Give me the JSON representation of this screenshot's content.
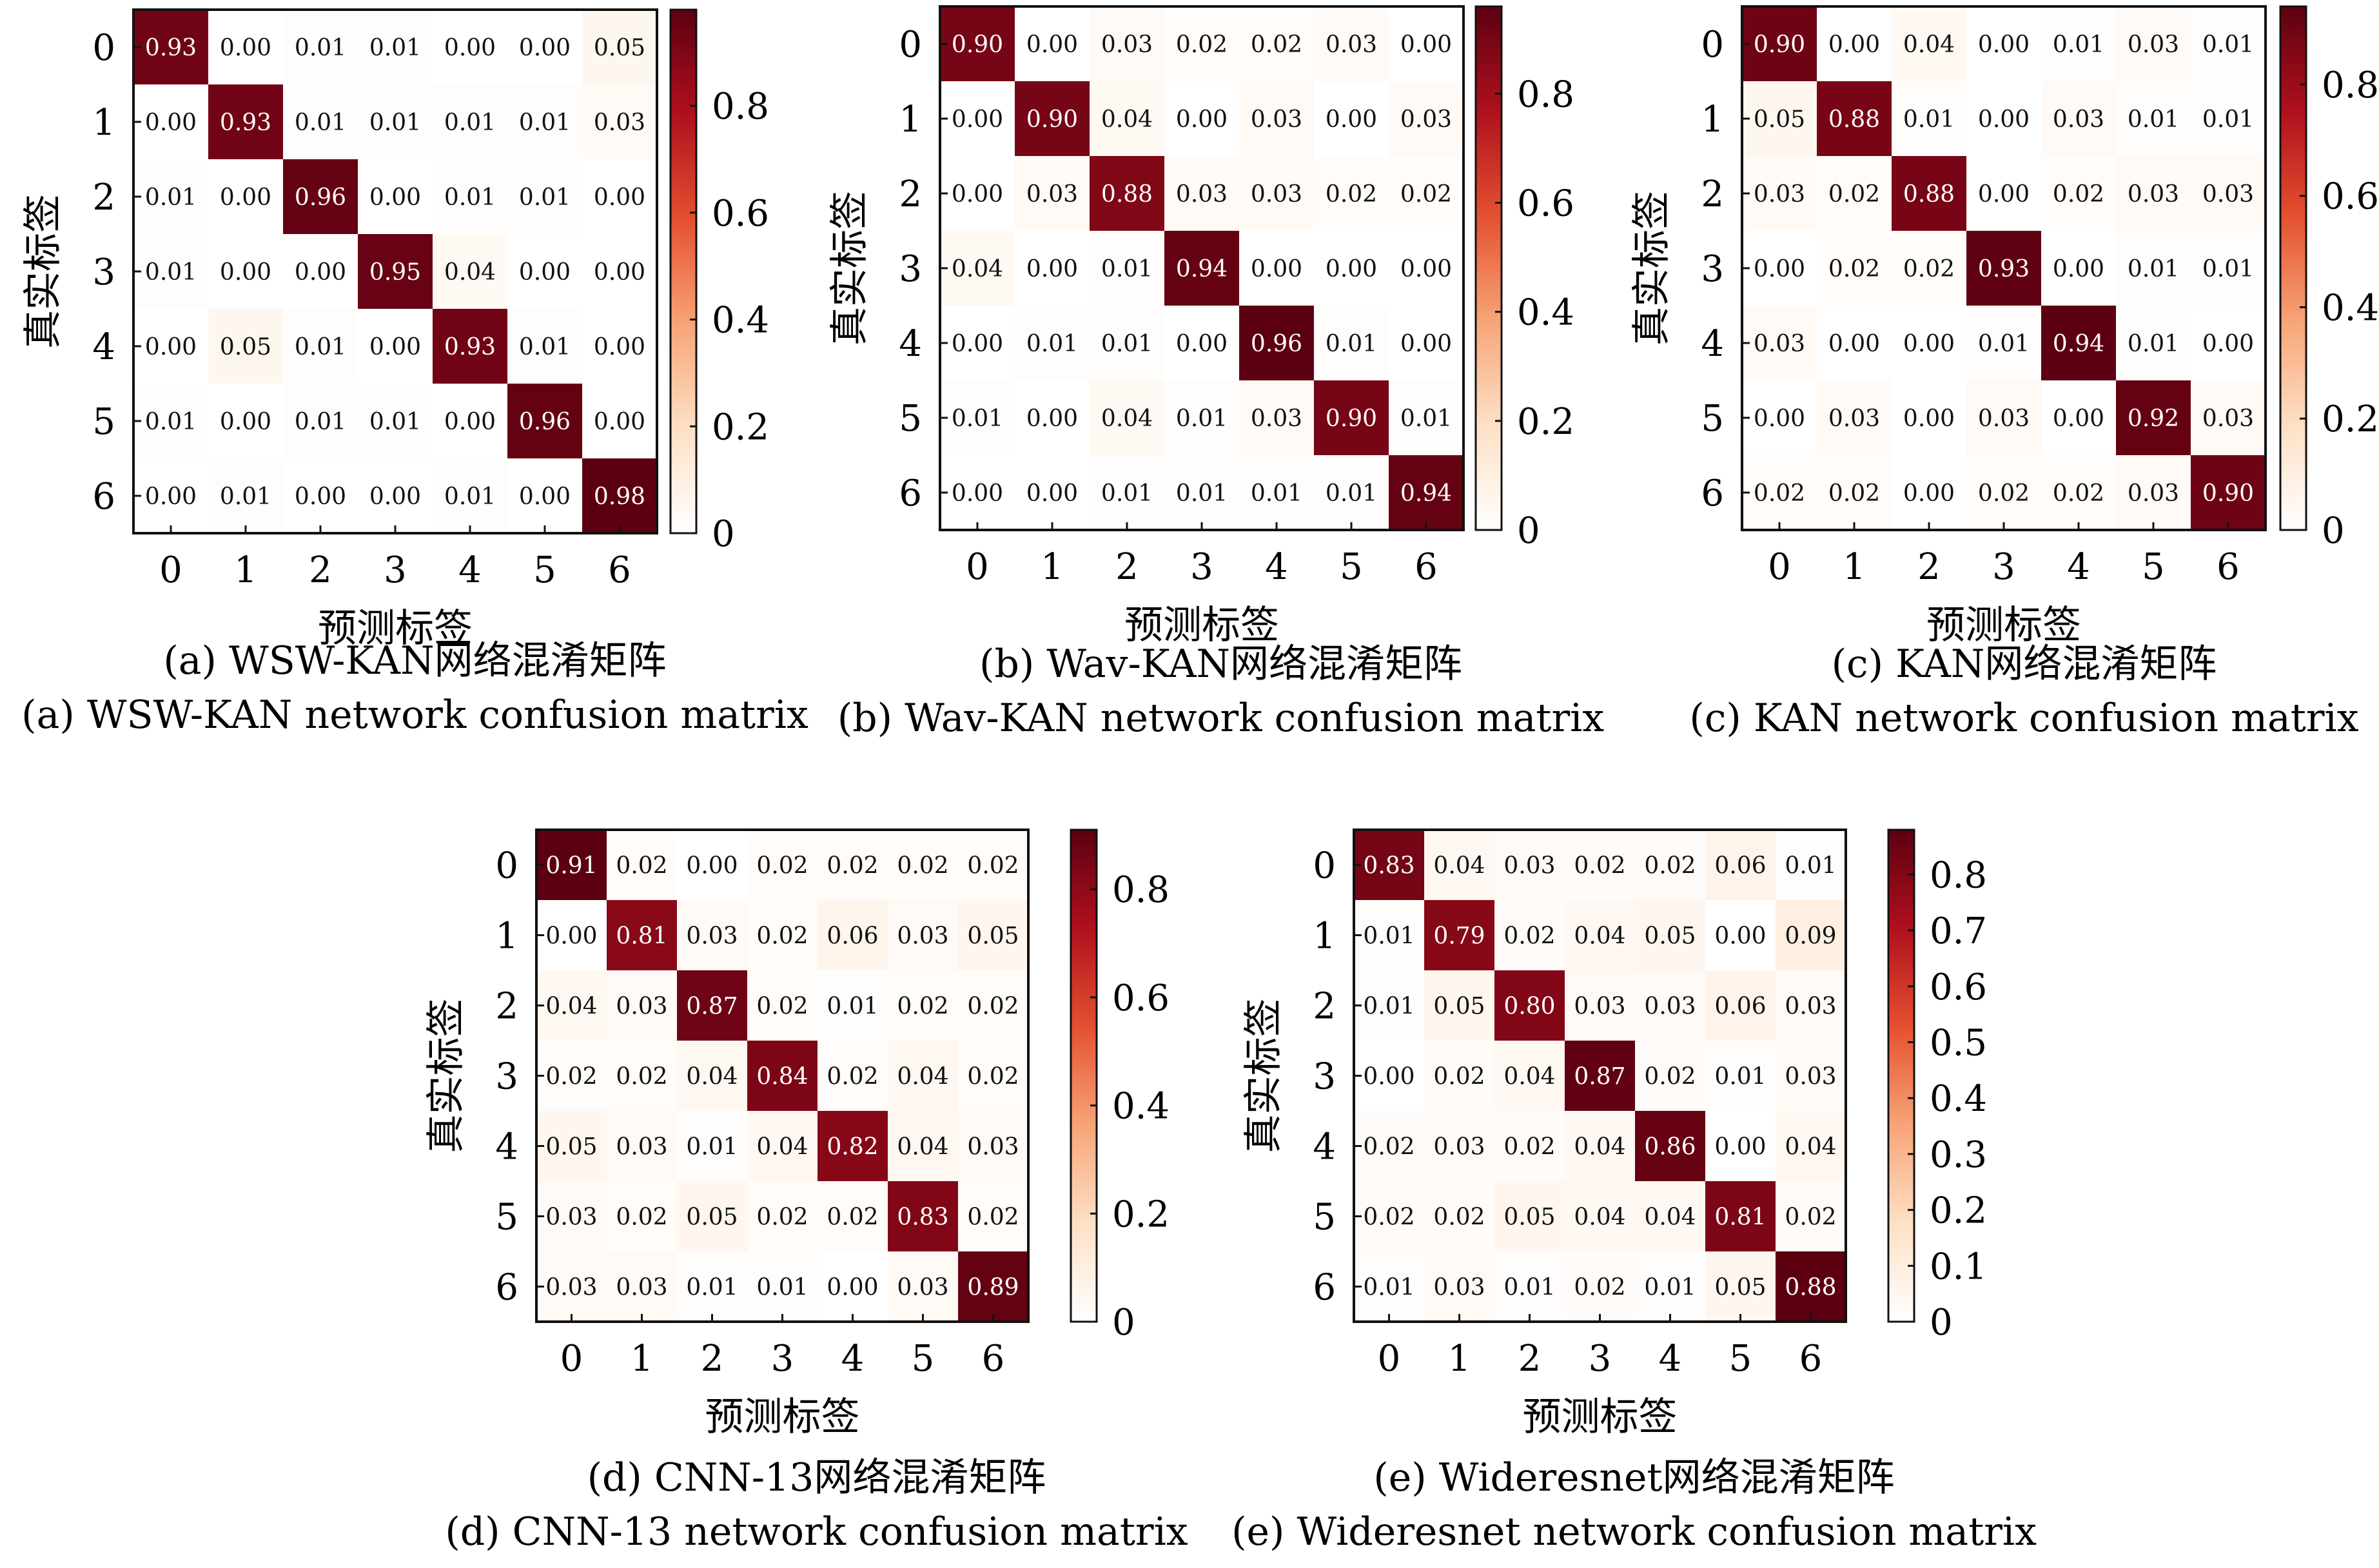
{
  "colors": {
    "colormap_stops": [
      "#ffffff",
      "#fde0c5",
      "#f7a476",
      "#e4502f",
      "#b0101d",
      "#5c0011"
    ],
    "axis": "#111111",
    "text_dark": "#111111",
    "text_light": "#ffffff"
  },
  "chart_data": [
    {
      "type": "heatmap",
      "id": "a",
      "caption_zh": "(a) WSW-KAN网络混淆矩阵",
      "caption_en": "(a) WSW-KAN network confusion matrix",
      "xlabel": "预测标签",
      "ylabel": "真实标签",
      "x_ticklabels": [
        "0",
        "1",
        "2",
        "3",
        "4",
        "5",
        "6"
      ],
      "y_ticklabels": [
        "0",
        "1",
        "2",
        "3",
        "4",
        "5",
        "6"
      ],
      "values": [
        [
          0.93,
          0.0,
          0.01,
          0.01,
          0.0,
          0.0,
          0.05
        ],
        [
          0.0,
          0.93,
          0.01,
          0.01,
          0.01,
          0.01,
          0.03
        ],
        [
          0.01,
          0.0,
          0.96,
          0.0,
          0.01,
          0.01,
          0.0
        ],
        [
          0.01,
          0.0,
          0.0,
          0.95,
          0.04,
          0.0,
          0.0
        ],
        [
          0.0,
          0.05,
          0.01,
          0.0,
          0.93,
          0.01,
          0.0
        ],
        [
          0.01,
          0.0,
          0.01,
          0.01,
          0.0,
          0.96,
          0.0
        ],
        [
          0.0,
          0.01,
          0.0,
          0.0,
          0.01,
          0.0,
          0.98
        ]
      ],
      "colorbar": {
        "vmin": 0,
        "vmax": 0.98,
        "ticks": [
          0,
          0.2,
          0.4,
          0.6,
          0.8
        ],
        "ticklabels": [
          "0",
          "0.2",
          "0.4",
          "0.6",
          "0.8"
        ]
      }
    },
    {
      "type": "heatmap",
      "id": "b",
      "caption_zh": "(b) Wav-KAN网络混淆矩阵",
      "caption_en": "(b) Wav-KAN network confusion matrix",
      "xlabel": "预测标签",
      "ylabel": "真实标签",
      "x_ticklabels": [
        "0",
        "1",
        "2",
        "3",
        "4",
        "5",
        "6"
      ],
      "y_ticklabels": [
        "0",
        "1",
        "2",
        "3",
        "4",
        "5",
        "6"
      ],
      "values": [
        [
          0.9,
          0.0,
          0.03,
          0.02,
          0.02,
          0.03,
          0.0
        ],
        [
          0.0,
          0.9,
          0.04,
          0.0,
          0.03,
          0.0,
          0.03
        ],
        [
          0.0,
          0.03,
          0.88,
          0.03,
          0.03,
          0.02,
          0.02
        ],
        [
          0.04,
          0.0,
          0.01,
          0.94,
          0.0,
          0.0,
          0.0
        ],
        [
          0.0,
          0.01,
          0.01,
          0.0,
          0.96,
          0.01,
          0.0
        ],
        [
          0.01,
          0.0,
          0.04,
          0.01,
          0.03,
          0.9,
          0.01
        ],
        [
          0.0,
          0.0,
          0.01,
          0.01,
          0.01,
          0.01,
          0.94
        ]
      ],
      "colorbar": {
        "vmin": 0,
        "vmax": 0.96,
        "ticks": [
          0,
          0.2,
          0.4,
          0.6,
          0.8
        ],
        "ticklabels": [
          "0",
          "0.2",
          "0.4",
          "0.6",
          "0.8"
        ]
      }
    },
    {
      "type": "heatmap",
      "id": "c",
      "caption_zh": "(c) KAN网络混淆矩阵",
      "caption_en": "(c) KAN network confusion matrix",
      "xlabel": "预测标签",
      "ylabel": "真实标签",
      "x_ticklabels": [
        "0",
        "1",
        "2",
        "3",
        "4",
        "5",
        "6"
      ],
      "y_ticklabels": [
        "0",
        "1",
        "2",
        "3",
        "4",
        "5",
        "6"
      ],
      "values": [
        [
          0.9,
          0.0,
          0.04,
          0.0,
          0.01,
          0.03,
          0.01
        ],
        [
          0.05,
          0.88,
          0.01,
          0.0,
          0.03,
          0.01,
          0.01
        ],
        [
          0.03,
          0.02,
          0.88,
          0.0,
          0.02,
          0.03,
          0.03
        ],
        [
          0.0,
          0.02,
          0.02,
          0.93,
          0.0,
          0.01,
          0.01
        ],
        [
          0.03,
          0.0,
          0.0,
          0.01,
          0.94,
          0.01,
          0.0
        ],
        [
          0.0,
          0.03,
          0.0,
          0.03,
          0.0,
          0.92,
          0.03
        ],
        [
          0.02,
          0.02,
          0.0,
          0.02,
          0.02,
          0.03,
          0.9
        ]
      ],
      "colorbar": {
        "vmin": 0,
        "vmax": 0.94,
        "ticks": [
          0,
          0.2,
          0.4,
          0.6,
          0.8
        ],
        "ticklabels": [
          "0",
          "0.2",
          "0.4",
          "0.6",
          "0.8"
        ]
      }
    },
    {
      "type": "heatmap",
      "id": "d",
      "caption_zh": "(d) CNN-13网络混淆矩阵",
      "caption_en": "(d) CNN-13 network confusion matrix",
      "xlabel": "预测标签",
      "ylabel": "真实标签",
      "x_ticklabels": [
        "0",
        "1",
        "2",
        "3",
        "4",
        "5",
        "6"
      ],
      "y_ticklabels": [
        "0",
        "1",
        "2",
        "3",
        "4",
        "5",
        "6"
      ],
      "values": [
        [
          0.91,
          0.02,
          0.0,
          0.02,
          0.02,
          0.02,
          0.02
        ],
        [
          0.0,
          0.81,
          0.03,
          0.02,
          0.06,
          0.03,
          0.05
        ],
        [
          0.04,
          0.03,
          0.87,
          0.02,
          0.01,
          0.02,
          0.02
        ],
        [
          0.02,
          0.02,
          0.04,
          0.84,
          0.02,
          0.04,
          0.02
        ],
        [
          0.05,
          0.03,
          0.01,
          0.04,
          0.82,
          0.04,
          0.03
        ],
        [
          0.03,
          0.02,
          0.05,
          0.02,
          0.02,
          0.83,
          0.02
        ],
        [
          0.03,
          0.03,
          0.01,
          0.01,
          0.0,
          0.03,
          0.89
        ]
      ],
      "colorbar": {
        "vmin": 0,
        "vmax": 0.91,
        "ticks": [
          0,
          0.2,
          0.4,
          0.6,
          0.8
        ],
        "ticklabels": [
          "0",
          "0.2",
          "0.4",
          "0.6",
          "0.8"
        ]
      }
    },
    {
      "type": "heatmap",
      "id": "e",
      "caption_zh": "(e) Wideresnet网络混淆矩阵",
      "caption_en": "(e) Wideresnet network confusion matrix",
      "xlabel": "预测标签",
      "ylabel": "真实标签",
      "x_ticklabels": [
        "0",
        "1",
        "2",
        "3",
        "4",
        "5",
        "6"
      ],
      "y_ticklabels": [
        "0",
        "1",
        "2",
        "3",
        "4",
        "5",
        "6"
      ],
      "values": [
        [
          0.83,
          0.04,
          0.03,
          0.02,
          0.02,
          0.06,
          0.01
        ],
        [
          0.01,
          0.79,
          0.02,
          0.04,
          0.05,
          0.0,
          0.09
        ],
        [
          0.01,
          0.05,
          0.8,
          0.03,
          0.03,
          0.06,
          0.03
        ],
        [
          0.0,
          0.02,
          0.04,
          0.87,
          0.02,
          0.01,
          0.03
        ],
        [
          0.02,
          0.03,
          0.02,
          0.04,
          0.86,
          0.0,
          0.04
        ],
        [
          0.02,
          0.02,
          0.05,
          0.04,
          0.04,
          0.81,
          0.02
        ],
        [
          0.01,
          0.03,
          0.01,
          0.02,
          0.01,
          0.05,
          0.88
        ]
      ],
      "colorbar": {
        "vmin": 0,
        "vmax": 0.88,
        "ticks": [
          0,
          0.1,
          0.2,
          0.3,
          0.4,
          0.5,
          0.6,
          0.7,
          0.8
        ],
        "ticklabels": [
          "0",
          "0.1",
          "0.2",
          "0.3",
          "0.4",
          "0.5",
          "0.6",
          "0.7",
          "0.8"
        ]
      }
    }
  ]
}
